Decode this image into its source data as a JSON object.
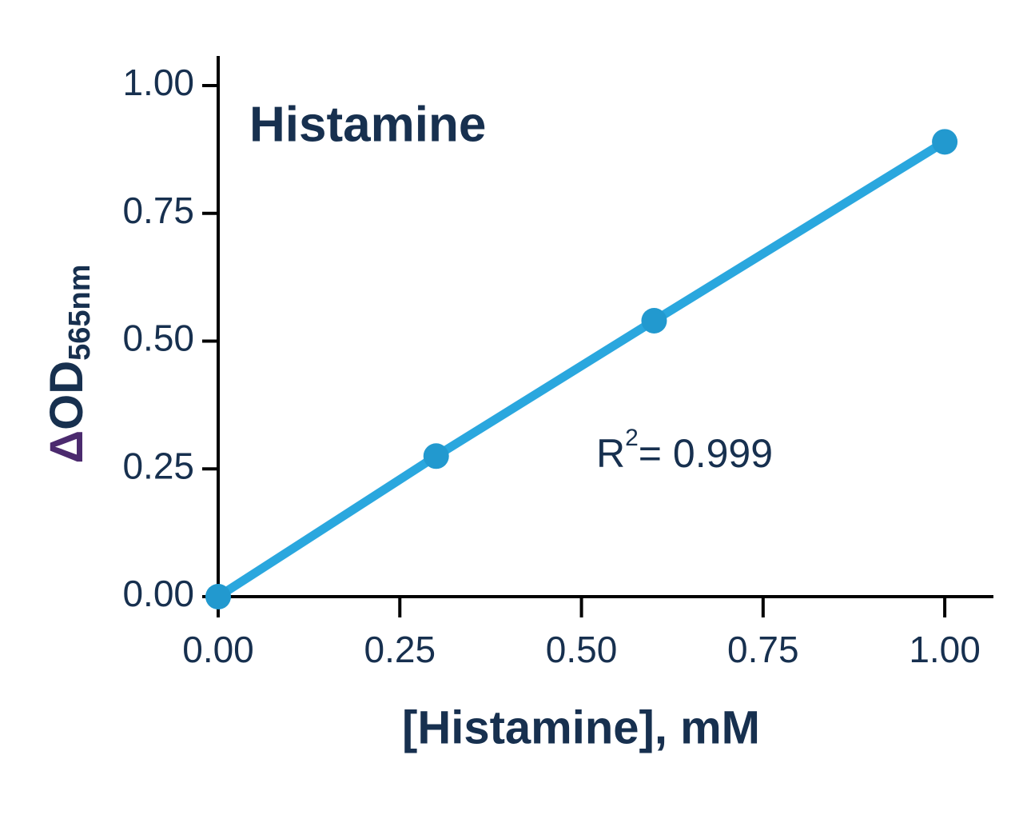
{
  "chart_data": {
    "type": "line",
    "title": "Histamine",
    "x_label": "[Histamine], mM",
    "y_label": {
      "symbol": "Δ",
      "main": "OD",
      "subscript": "565nm"
    },
    "annotation": {
      "base": "R",
      "superscript": "2",
      "rest": "= 0.999"
    },
    "x": [
      0,
      0.3,
      0.6,
      1.0
    ],
    "series": [
      {
        "color": "#2aa7de",
        "values": [
          0,
          0.275,
          0.54,
          0.89
        ]
      }
    ],
    "xlim": [
      0,
      1.067
    ],
    "ylim": [
      0,
      1.058
    ],
    "xticks": [
      {
        "value": 0,
        "label": "0.00"
      },
      {
        "value": 0.25,
        "label": "0.25"
      },
      {
        "value": 0.5,
        "label": "0.50"
      },
      {
        "value": 0.75,
        "label": "0.75"
      },
      {
        "value": 1,
        "label": "1.00"
      }
    ],
    "yticks": [
      {
        "value": 0,
        "label": "0.00"
      },
      {
        "value": 0.25,
        "label": "0.25"
      },
      {
        "value": 0.5,
        "label": "0.50"
      },
      {
        "value": 0.75,
        "label": "0.75"
      },
      {
        "value": 1,
        "label": "1.00"
      }
    ],
    "grid": false
  }
}
